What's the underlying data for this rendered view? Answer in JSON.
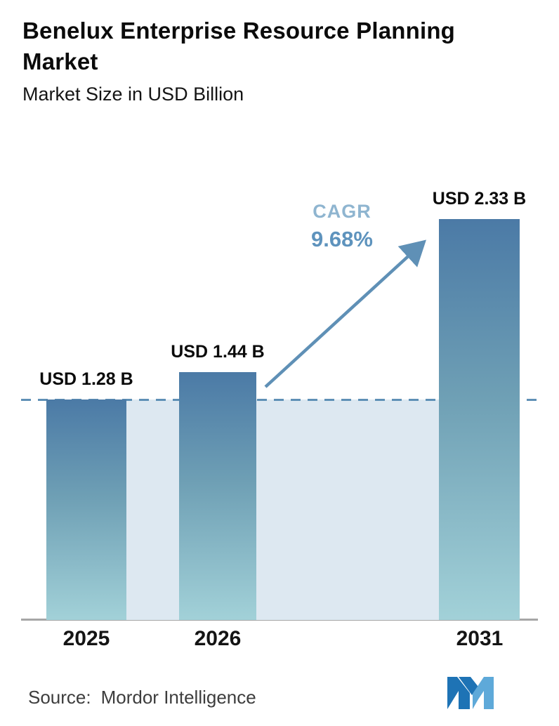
{
  "header": {
    "title": "Benelux Enterprise Resource Planning Market",
    "title_lines": [
      "Benelux Enterprise Resource Planning",
      "Market"
    ],
    "subtitle": "Market Size in USD Billion"
  },
  "chart_data": {
    "type": "bar",
    "title": "Benelux Enterprise Resource Planning Market",
    "subtitle": "Market Size in USD Billion",
    "unit": "USD Billion",
    "categories": [
      "2025",
      "2026",
      "2031"
    ],
    "values": [
      1.28,
      1.44,
      2.33
    ],
    "value_labels": [
      "USD 1.28 B",
      "USD 1.44 B",
      "USD 2.33 B"
    ],
    "cagr_label": "CAGR",
    "cagr_value": "9.68%",
    "ylim": [
      0,
      2.5
    ],
    "grid": false,
    "legend": "none",
    "annotations": [
      "dashed reference line at 2025 level (1.28)",
      "arrow from 2026 bar to 2031 bar indicating growth"
    ],
    "colors": {
      "bar_gradient_top": "#4b7aa6",
      "bar_gradient_bottom": "#a2d1d8",
      "highlight_band": "#dde8f1",
      "dashed_line": "#5f90b6",
      "arrow": "#5f90b6",
      "cagr_label": "#8fb5d0",
      "cagr_value": "#5e93bd",
      "axis": "#a6a6a6"
    }
  },
  "footer": {
    "source_label": "Source:",
    "source_value": "Mordor Intelligence",
    "logo": "mordor-intelligence-logo",
    "logo_colors": {
      "dark": "#1e73b5",
      "light": "#5ea9d9"
    }
  }
}
